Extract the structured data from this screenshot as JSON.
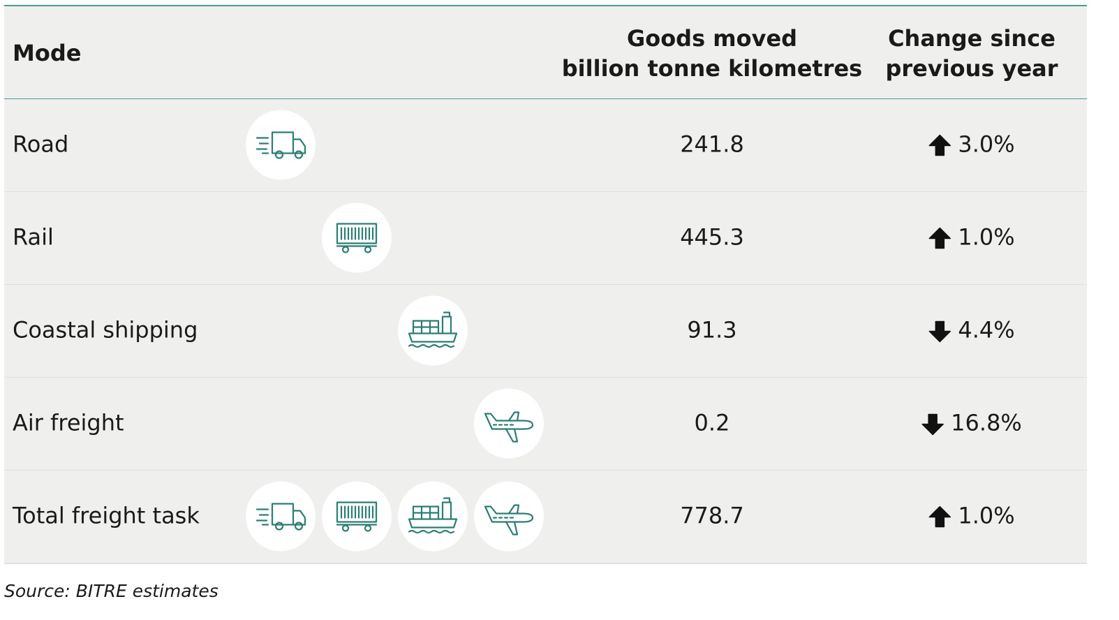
{
  "header": {
    "mode": "Mode",
    "goods": [
      "Goods moved",
      "billion tonne kilometres"
    ],
    "change": [
      "Change since",
      "previous year"
    ]
  },
  "table": {
    "rows": [
      {
        "mode": "Road",
        "goods": "241.8",
        "change": "3.0%",
        "direction": "up"
      },
      {
        "mode": "Rail",
        "goods": "445.3",
        "change": "1.0%",
        "direction": "up"
      },
      {
        "mode": "Coastal shipping",
        "goods": "91.3",
        "change": "4.4%",
        "direction": "down"
      },
      {
        "mode": "Air freight",
        "goods": "0.2",
        "change": "16.8%",
        "direction": "down"
      },
      {
        "mode": "Total freight task",
        "goods": "778.7",
        "change": "1.0%",
        "direction": "up"
      }
    ]
  },
  "source": "Source: BITRE estimates"
}
